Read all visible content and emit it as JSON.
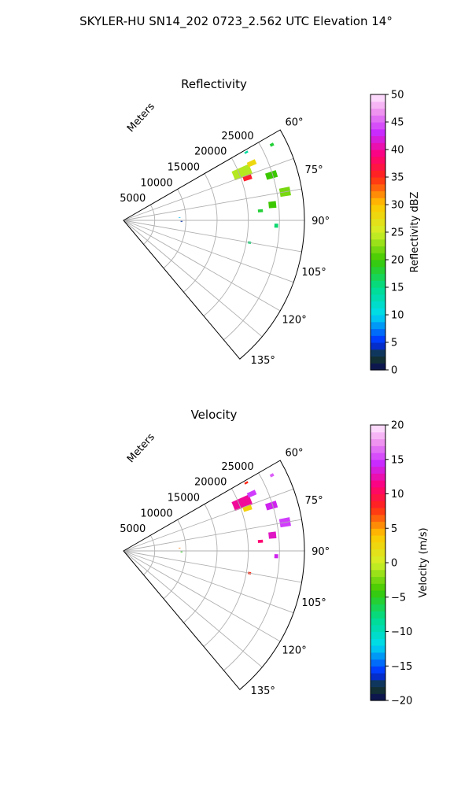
{
  "figure": {
    "title": "SKYLER-HU  SN14_202  0723_2.562 UTC Elevation 14°"
  },
  "chart_data": [
    {
      "type": "heatmap",
      "projection": "polar-sector",
      "title": "Reflectivity",
      "radial_label": "Meters",
      "radial_ticks": [
        5000,
        10000,
        15000,
        20000,
        25000
      ],
      "radial_tick_labels": [
        "5000",
        "10000",
        "15000",
        "20000",
        "25000"
      ],
      "rlim": [
        0,
        29000
      ],
      "angle_range_deg": [
        60,
        140
      ],
      "angle_ticks": [
        60,
        75,
        90,
        105,
        120,
        135
      ],
      "angle_tick_labels": [
        "60°",
        "75°",
        "90°",
        "105°",
        "120°",
        "135°"
      ],
      "grid": true,
      "colorbar": {
        "label": "Reflectivity dBZ",
        "range": [
          0,
          50
        ],
        "ticks": [
          0,
          5,
          10,
          15,
          20,
          25,
          30,
          35,
          40,
          45,
          50
        ],
        "tick_labels": [
          "0",
          "5",
          "10",
          "15",
          "20",
          "25",
          "30",
          "35",
          "40",
          "45",
          "50"
        ]
      },
      "echoes": [
        {
          "az": 68,
          "r": 20500,
          "daz": 4.5,
          "dr": 3000,
          "value": 24
        },
        {
          "az": 71,
          "r": 21000,
          "daz": 2.2,
          "dr": 1400,
          "value": 36
        },
        {
          "az": 66,
          "r": 22500,
          "daz": 2.0,
          "dr": 1400,
          "value": 28
        },
        {
          "az": 73,
          "r": 24800,
          "daz": 2.5,
          "dr": 1800,
          "value": 20
        },
        {
          "az": 80,
          "r": 26300,
          "daz": 3.0,
          "dr": 1700,
          "value": 22
        },
        {
          "az": 84,
          "r": 24000,
          "daz": 2.5,
          "dr": 1200,
          "value": 20
        },
        {
          "az": 86,
          "r": 22000,
          "daz": 1.2,
          "dr": 800,
          "value": 18
        },
        {
          "az": 92,
          "r": 24500,
          "daz": 1.5,
          "dr": 600,
          "value": 16
        },
        {
          "az": 100,
          "r": 20500,
          "daz": 1.0,
          "dr": 500,
          "value": 16
        },
        {
          "az": 61,
          "r": 22500,
          "daz": 0.8,
          "dr": 600,
          "value": 14
        },
        {
          "az": 63,
          "r": 26700,
          "daz": 1.0,
          "dr": 600,
          "value": 18
        },
        {
          "az": 87,
          "r": 9000,
          "daz": 0.6,
          "dr": 300,
          "value": 9
        },
        {
          "az": 91,
          "r": 9300,
          "daz": 0.8,
          "dr": 300,
          "value": 4
        }
      ]
    },
    {
      "type": "heatmap",
      "projection": "polar-sector",
      "title": "Velocity",
      "radial_label": "Meters",
      "radial_ticks": [
        5000,
        10000,
        15000,
        20000,
        25000
      ],
      "radial_tick_labels": [
        "5000",
        "10000",
        "15000",
        "20000",
        "25000"
      ],
      "rlim": [
        0,
        29000
      ],
      "angle_range_deg": [
        60,
        140
      ],
      "angle_ticks": [
        60,
        75,
        90,
        105,
        120,
        135
      ],
      "angle_tick_labels": [
        "60°",
        "75°",
        "90°",
        "105°",
        "120°",
        "135°"
      ],
      "grid": true,
      "colorbar": {
        "label": "Velocity (m/s)",
        "range": [
          -20,
          20
        ],
        "ticks": [
          -20,
          -15,
          -10,
          -5,
          0,
          5,
          10,
          15,
          20
        ],
        "tick_labels": [
          "−20",
          "−15",
          "−10",
          "−5",
          "0",
          "5",
          "10",
          "15",
          "20"
        ]
      },
      "echoes": [
        {
          "az": 68,
          "r": 20500,
          "daz": 4.5,
          "dr": 3000,
          "value": 12
        },
        {
          "az": 71,
          "r": 21000,
          "daz": 2.2,
          "dr": 1400,
          "value": 3
        },
        {
          "az": 66,
          "r": 22500,
          "daz": 2.0,
          "dr": 1400,
          "value": 15
        },
        {
          "az": 73,
          "r": 24800,
          "daz": 2.5,
          "dr": 1800,
          "value": 14
        },
        {
          "az": 80,
          "r": 26300,
          "daz": 3.0,
          "dr": 1700,
          "value": 15
        },
        {
          "az": 84,
          "r": 24000,
          "daz": 2.5,
          "dr": 1200,
          "value": 13
        },
        {
          "az": 86,
          "r": 22000,
          "daz": 1.2,
          "dr": 800,
          "value": 11
        },
        {
          "az": 92,
          "r": 24500,
          "daz": 1.5,
          "dr": 600,
          "value": 14
        },
        {
          "az": 100,
          "r": 20500,
          "daz": 1.0,
          "dr": 500,
          "value": 8
        },
        {
          "az": 61,
          "r": 22500,
          "daz": 0.8,
          "dr": 600,
          "value": 8
        },
        {
          "az": 63,
          "r": 26700,
          "daz": 1.0,
          "dr": 600,
          "value": 16
        },
        {
          "az": 87,
          "r": 9000,
          "daz": 0.6,
          "dr": 300,
          "value": 6
        },
        {
          "az": 91,
          "r": 9300,
          "daz": 0.8,
          "dr": 300,
          "value": -5
        }
      ]
    }
  ]
}
